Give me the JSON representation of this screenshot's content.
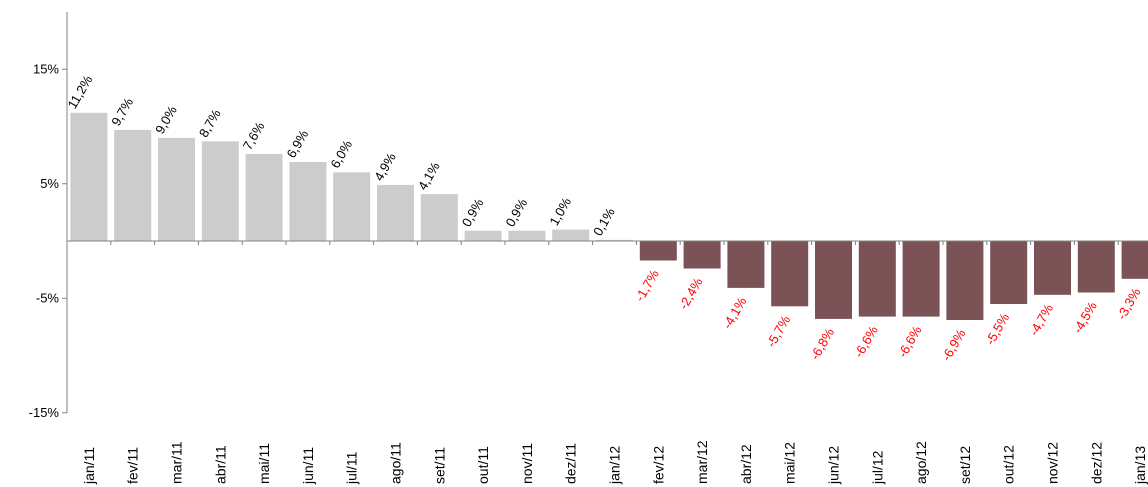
{
  "chart_data": {
    "type": "bar",
    "title": "",
    "xlabel": "",
    "ylabel": "",
    "ylim": [
      -15,
      15
    ],
    "yticks": [
      "15%",
      "5%",
      "-5%",
      "-15%"
    ],
    "grid": false,
    "legend": "none",
    "categories": [
      "jan/11",
      "fev/11",
      "mar/11",
      "abr/11",
      "mai/11",
      "jun/11",
      "jul/11",
      "ago/11",
      "set/11",
      "out/11",
      "nov/11",
      "dez/11",
      "jan/12",
      "fev/12",
      "mar/12",
      "abr/12",
      "mai/12",
      "jun/12",
      "jul/12",
      "ago/12",
      "set/12",
      "out/12",
      "nov/12",
      "dez/12",
      "jan/13"
    ],
    "values": [
      11.2,
      9.7,
      9.0,
      8.7,
      7.6,
      6.9,
      6.0,
      4.9,
      4.1,
      0.9,
      0.9,
      1.0,
      0.1,
      -1.7,
      -2.4,
      -4.1,
      -5.7,
      -6.8,
      -6.6,
      -6.6,
      -6.9,
      -5.5,
      -4.7,
      -4.5,
      -3.3
    ],
    "data_labels": [
      "11,2%",
      "9,7%",
      "9,0%",
      "8,7%",
      "7,6%",
      "6,9%",
      "6,0%",
      "4,9%",
      "4,1%",
      "0,9%",
      "0,9%",
      "1,0%",
      "0,1%",
      "-1,7%",
      "-2,4%",
      "-4,1%",
      "-5,7%",
      "-6,8%",
      "-6,6%",
      "-6,6%",
      "-6,9%",
      "-5,5%",
      "-4,7%",
      "-4,5%",
      "-3,3%"
    ],
    "colors": {
      "positive_bar": "#cccccc",
      "negative_bar": "#7b5256",
      "positive_label": "#000000",
      "negative_label": "#ff0000",
      "axis": "#808080"
    }
  }
}
